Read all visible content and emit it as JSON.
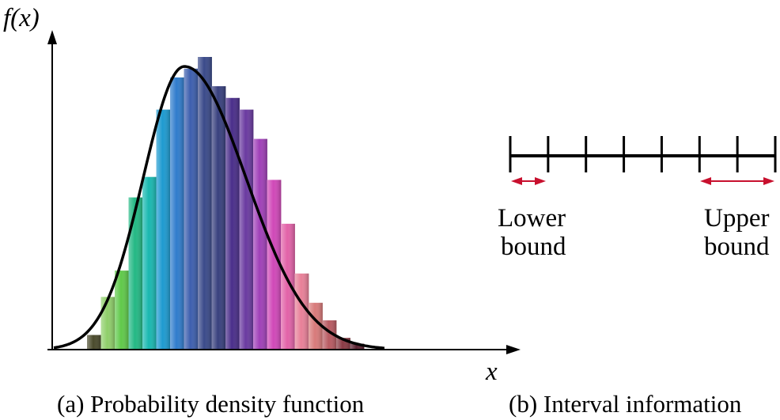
{
  "panel_a": {
    "y_axis_label": "f(x)",
    "x_axis_label": "x",
    "caption": "(a) Probability density function"
  },
  "panel_b": {
    "lower_bound_label_line1": "Lower",
    "lower_bound_label_line2": "bound",
    "upper_bound_label_line1": "Upper",
    "upper_bound_label_line2": "bound",
    "caption": "(b) Interval information",
    "tick_count": 8,
    "arrow_color": "#c8102e"
  },
  "chart_data": {
    "type": "bar",
    "title": "Probability density function",
    "xlabel": "x",
    "ylabel": "f(x)",
    "bin_count": 20,
    "values": [
      0.05,
      0.18,
      0.27,
      0.52,
      0.59,
      0.82,
      0.93,
      0.96,
      1.0,
      0.9,
      0.86,
      0.82,
      0.72,
      0.58,
      0.43,
      0.26,
      0.16,
      0.1,
      0.04,
      0.02
    ],
    "bar_colors": [
      "#4a4a2c",
      "#8fcf6a",
      "#60c94a",
      "#23b884",
      "#19b8b0",
      "#1d9ad0",
      "#2f7ccc",
      "#3d5fae",
      "#3a4a8a",
      "#38407e",
      "#4a2e8a",
      "#6a3aa0",
      "#a040b8",
      "#d048b8",
      "#e262a8",
      "#e88098",
      "#d87a7a",
      "#b85a62",
      "#8a3a44",
      "#5a2030"
    ],
    "curve": "normal-density fit (peak near bin 8)",
    "axis_color": "#000000"
  }
}
